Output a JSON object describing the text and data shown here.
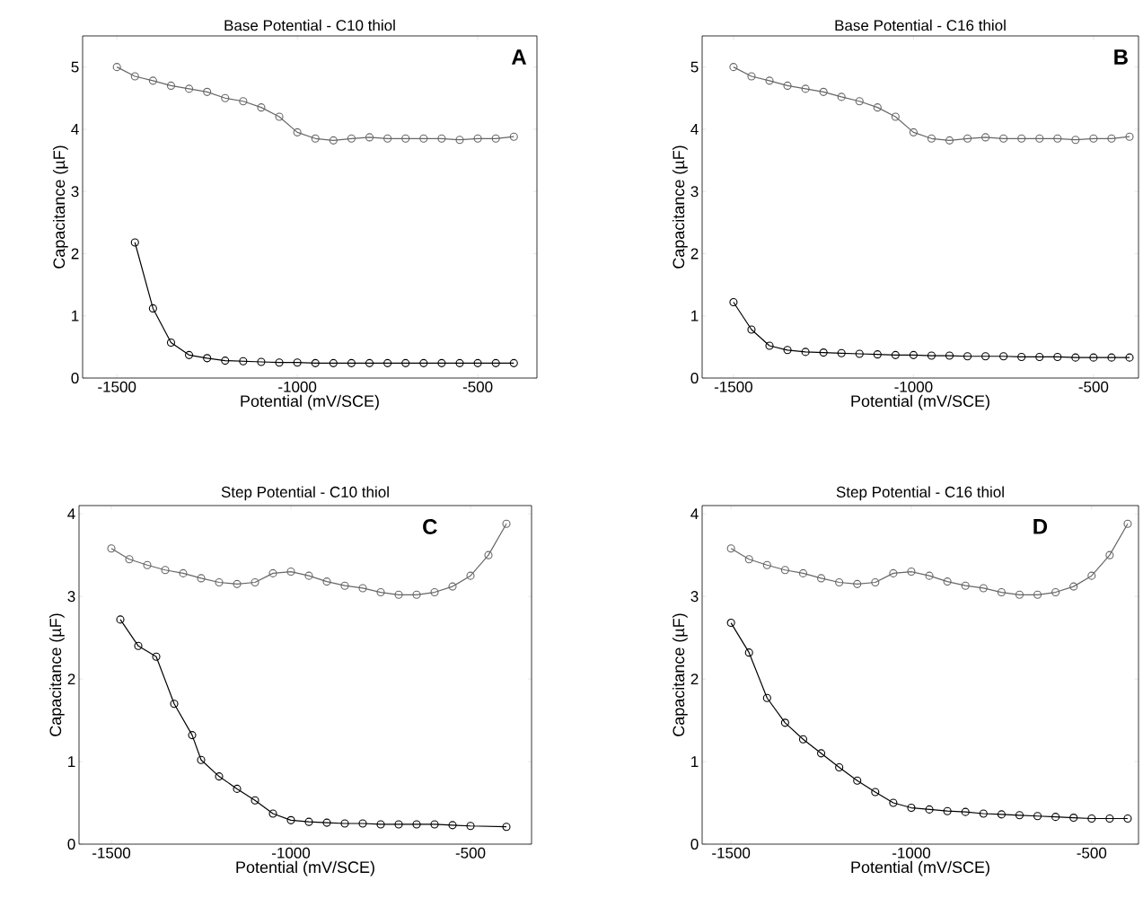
{
  "chart_data": [
    {
      "type": "line",
      "title": "Base Potential - C10 thiol",
      "xlabel": "Potential (mV/SCE)",
      "ylabel": "Capacitance (µF)",
      "annotations": [
        "A"
      ],
      "xlim": [
        -1595,
        -336
      ],
      "ylim": [
        0,
        5.5
      ],
      "xticks": [
        -1500,
        -1000,
        -500
      ],
      "yticks": [
        0,
        1,
        2,
        3,
        4,
        5
      ],
      "marker": "circle",
      "series": [
        {
          "color": "#666666",
          "x": [
            -1500,
            -1450,
            -1400,
            -1350,
            -1300,
            -1250,
            -1200,
            -1150,
            -1100,
            -1050,
            -1000,
            -950,
            -900,
            -850,
            -800,
            -750,
            -700,
            -650,
            -600,
            -550,
            -500,
            -450,
            -400
          ],
          "values": [
            5.0,
            4.85,
            4.78,
            4.7,
            4.65,
            4.6,
            4.5,
            4.45,
            4.35,
            4.2,
            3.95,
            3.85,
            3.82,
            3.85,
            3.87,
            3.85,
            3.85,
            3.85,
            3.85,
            3.83,
            3.85,
            3.85,
            3.88
          ]
        },
        {
          "color": "#000000",
          "x": [
            -1450,
            -1400,
            -1350,
            -1300,
            -1250,
            -1200,
            -1150,
            -1100,
            -1050,
            -1000,
            -950,
            -900,
            -850,
            -800,
            -750,
            -700,
            -650,
            -600,
            -550,
            -500,
            -450,
            -400
          ],
          "values": [
            2.18,
            1.12,
            0.57,
            0.37,
            0.32,
            0.28,
            0.27,
            0.26,
            0.25,
            0.25,
            0.24,
            0.24,
            0.24,
            0.24,
            0.24,
            0.24,
            0.24,
            0.24,
            0.24,
            0.24,
            0.24,
            0.24
          ]
        }
      ]
    },
    {
      "type": "line",
      "title": "Base Potential - C16 thiol",
      "xlabel": "Potential (mV/SCE)",
      "ylabel": "Capacitance (µF)",
      "annotations": [
        "B"
      ],
      "xlim": [
        -1587,
        -375
      ],
      "ylim": [
        0,
        5.5
      ],
      "xticks": [
        -1500,
        -1000,
        -500
      ],
      "yticks": [
        0,
        1,
        2,
        3,
        4,
        5
      ],
      "marker": "circle",
      "series": [
        {
          "color": "#666666",
          "x": [
            -1500,
            -1450,
            -1400,
            -1350,
            -1300,
            -1250,
            -1200,
            -1150,
            -1100,
            -1050,
            -1000,
            -950,
            -900,
            -850,
            -800,
            -750,
            -700,
            -650,
            -600,
            -550,
            -500,
            -450,
            -400
          ],
          "values": [
            5.0,
            4.85,
            4.78,
            4.7,
            4.65,
            4.6,
            4.52,
            4.45,
            4.35,
            4.2,
            3.95,
            3.85,
            3.82,
            3.85,
            3.87,
            3.85,
            3.85,
            3.85,
            3.85,
            3.83,
            3.85,
            3.85,
            3.88
          ]
        },
        {
          "color": "#000000",
          "x": [
            -1500,
            -1450,
            -1400,
            -1350,
            -1300,
            -1250,
            -1200,
            -1150,
            -1100,
            -1050,
            -1000,
            -950,
            -900,
            -850,
            -800,
            -750,
            -700,
            -650,
            -600,
            -550,
            -500,
            -450,
            -400
          ],
          "values": [
            1.22,
            0.78,
            0.52,
            0.45,
            0.42,
            0.41,
            0.4,
            0.39,
            0.38,
            0.37,
            0.37,
            0.36,
            0.36,
            0.35,
            0.35,
            0.35,
            0.34,
            0.34,
            0.34,
            0.33,
            0.33,
            0.33,
            0.33
          ]
        }
      ]
    },
    {
      "type": "line",
      "title": "Step Potential - C10 thiol",
      "xlabel": "Potential (mV/SCE)",
      "ylabel": "Capacitance (µF)",
      "annotations": [
        "C"
      ],
      "xlim": [
        -1590,
        -330
      ],
      "ylim": [
        0,
        4.1
      ],
      "xticks": [
        -1500,
        -1000,
        -500
      ],
      "yticks": [
        0,
        1,
        2,
        3,
        4
      ],
      "marker": "circle",
      "series": [
        {
          "color": "#666666",
          "x": [
            -1500,
            -1450,
            -1400,
            -1350,
            -1300,
            -1250,
            -1200,
            -1150,
            -1100,
            -1050,
            -1000,
            -950,
            -900,
            -850,
            -800,
            -750,
            -700,
            -650,
            -600,
            -550,
            -500,
            -450,
            -400
          ],
          "values": [
            3.58,
            3.45,
            3.38,
            3.32,
            3.28,
            3.22,
            3.17,
            3.15,
            3.17,
            3.28,
            3.3,
            3.25,
            3.18,
            3.13,
            3.1,
            3.05,
            3.02,
            3.02,
            3.05,
            3.12,
            3.25,
            3.5,
            3.88
          ]
        },
        {
          "color": "#000000",
          "x": [
            -1475,
            -1425,
            -1375,
            -1325,
            -1275,
            -1250,
            -1200,
            -1150,
            -1100,
            -1050,
            -1000,
            -950,
            -900,
            -850,
            -800,
            -750,
            -700,
            -650,
            -600,
            -550,
            -500,
            -400
          ],
          "values": [
            2.72,
            2.4,
            2.27,
            1.7,
            1.32,
            1.02,
            0.82,
            0.67,
            0.53,
            0.37,
            0.29,
            0.27,
            0.26,
            0.25,
            0.25,
            0.24,
            0.24,
            0.24,
            0.24,
            0.23,
            0.22,
            0.21
          ]
        }
      ]
    },
    {
      "type": "line",
      "title": "Step Potential - C16 thiol",
      "xlabel": "Potential (mV/SCE)",
      "ylabel": "Capacitance (µF)",
      "annotations": [
        "D"
      ],
      "xlim": [
        -1580,
        -370
      ],
      "ylim": [
        0,
        4.1
      ],
      "xticks": [
        -1500,
        -1000,
        -500
      ],
      "yticks": [
        0,
        1,
        2,
        3,
        4
      ],
      "marker": "circle",
      "series": [
        {
          "color": "#666666",
          "x": [
            -1500,
            -1450,
            -1400,
            -1350,
            -1300,
            -1250,
            -1200,
            -1150,
            -1100,
            -1050,
            -1000,
            -950,
            -900,
            -850,
            -800,
            -750,
            -700,
            -650,
            -600,
            -550,
            -500,
            -450,
            -400
          ],
          "values": [
            3.58,
            3.45,
            3.38,
            3.32,
            3.28,
            3.22,
            3.17,
            3.15,
            3.17,
            3.28,
            3.3,
            3.25,
            3.18,
            3.13,
            3.1,
            3.05,
            3.02,
            3.02,
            3.05,
            3.12,
            3.25,
            3.5,
            3.88
          ]
        },
        {
          "color": "#000000",
          "x": [
            -1500,
            -1450,
            -1400,
            -1350,
            -1300,
            -1250,
            -1200,
            -1150,
            -1100,
            -1050,
            -1000,
            -950,
            -900,
            -850,
            -800,
            -750,
            -700,
            -650,
            -600,
            -550,
            -500,
            -450,
            -400
          ],
          "values": [
            2.68,
            2.32,
            1.77,
            1.47,
            1.27,
            1.1,
            0.93,
            0.77,
            0.63,
            0.5,
            0.44,
            0.42,
            0.4,
            0.39,
            0.37,
            0.36,
            0.35,
            0.34,
            0.33,
            0.32,
            0.31,
            0.31,
            0.31
          ]
        }
      ]
    }
  ]
}
